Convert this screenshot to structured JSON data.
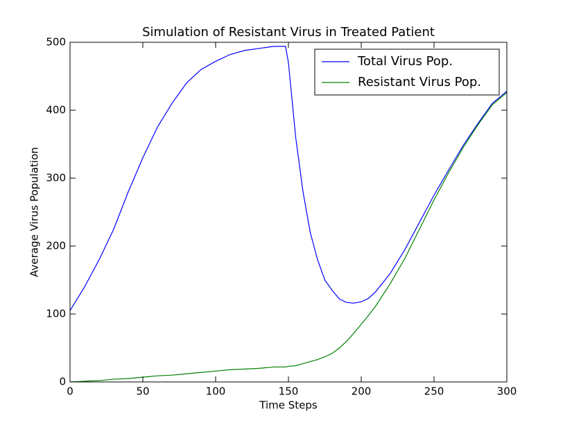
{
  "chart_data": {
    "type": "line",
    "title": "Simulation of Resistant Virus in Treated Patient",
    "xlabel": "Time Steps",
    "ylabel": "Average Virus Population",
    "x": [
      0,
      10,
      20,
      30,
      40,
      50,
      60,
      70,
      80,
      90,
      100,
      110,
      120,
      130,
      140,
      148,
      150,
      155,
      160,
      165,
      170,
      175,
      180,
      185,
      190,
      195,
      200,
      205,
      210,
      220,
      230,
      240,
      250,
      260,
      270,
      280,
      290,
      300
    ],
    "series": [
      {
        "name": "Total Virus Pop.",
        "color": "#0000ff",
        "values": [
          105,
          140,
          180,
          225,
          280,
          330,
          375,
          410,
          440,
          460,
          472,
          482,
          488,
          491,
          494,
          494,
          470,
          360,
          280,
          220,
          180,
          150,
          135,
          122,
          117,
          116,
          118,
          123,
          133,
          160,
          195,
          235,
          275,
          312,
          348,
          380,
          410,
          428
        ]
      },
      {
        "name": "Resistant Virus Pop.",
        "color": "#008000",
        "values": [
          0,
          1,
          2,
          4,
          5,
          7,
          9,
          10,
          12,
          14,
          16,
          18,
          19,
          20,
          22,
          22,
          23,
          24,
          27,
          30,
          33,
          37,
          42,
          50,
          60,
          72,
          85,
          98,
          112,
          145,
          182,
          225,
          268,
          308,
          345,
          378,
          408,
          426
        ]
      }
    ],
    "xlim": [
      0,
      300
    ],
    "ylim": [
      0,
      500
    ],
    "xticks": [
      0,
      50,
      100,
      150,
      200,
      250,
      300
    ],
    "yticks": [
      0,
      100,
      200,
      300,
      400,
      500
    ],
    "legend": "upper right"
  }
}
